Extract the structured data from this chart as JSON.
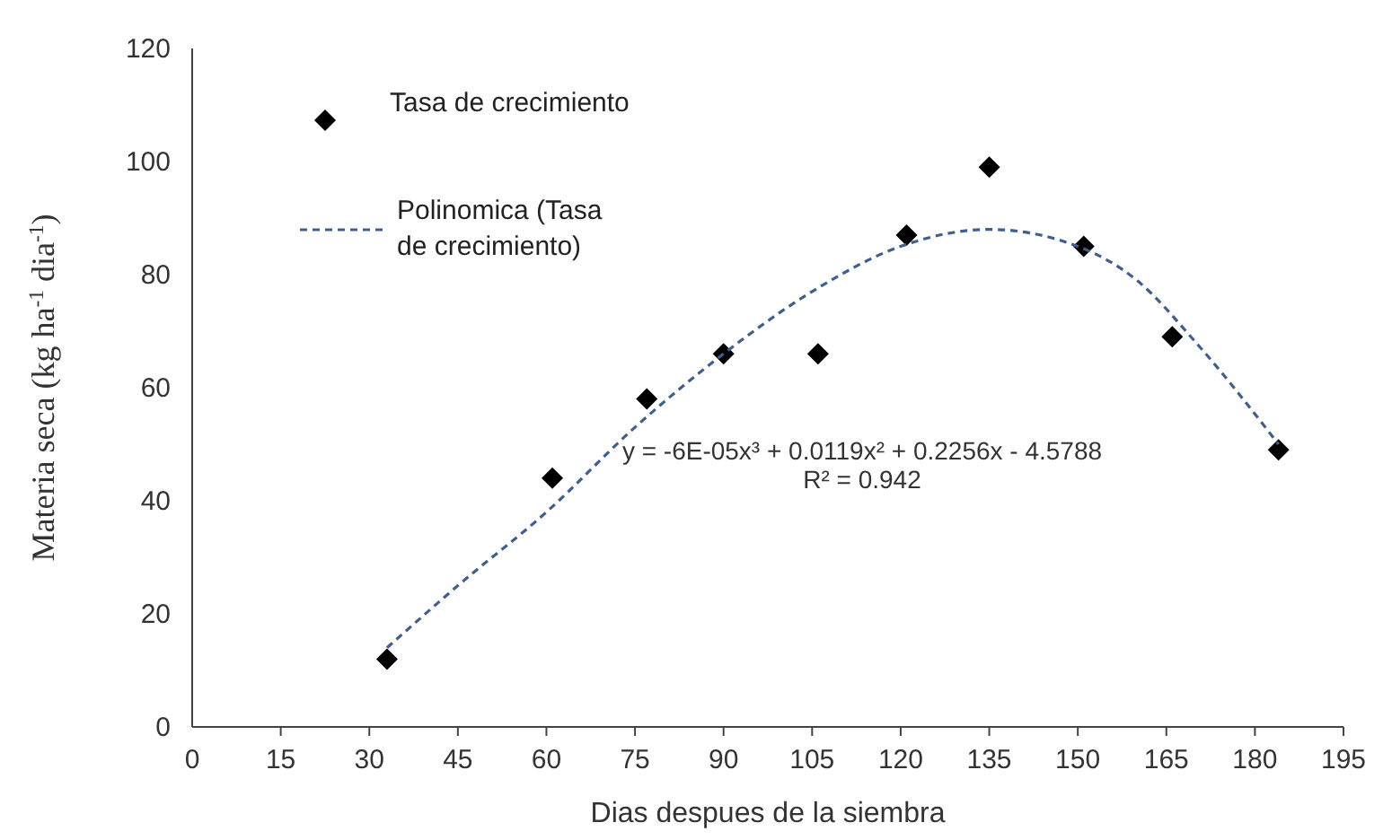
{
  "chart_data": {
    "type": "scatter",
    "xlabel": "Dias despues de la siembra",
    "ylabel": "Materia seca (kg ha$^{-1}$ dia$^{-1}$)",
    "x": [
      33,
      61,
      77,
      90,
      106,
      121,
      135,
      151,
      166,
      184
    ],
    "series": [
      {
        "name": "Tasa de crecimiento",
        "type": "scatter",
        "color": "#000000",
        "marker": "diamond",
        "values": [
          12,
          44,
          58,
          66,
          66,
          87,
          99,
          85,
          69,
          49
        ]
      },
      {
        "name": "Polinomica (Tasa de crecimiento)",
        "type": "line",
        "color": "#3f5f8f",
        "line_style": "dashed",
        "marker": "none",
        "x": [
          33,
          45,
          60,
          75,
          90,
          105,
          120,
          135,
          150,
          160,
          170,
          184
        ],
        "values": [
          14,
          25,
          38,
          53,
          66,
          77,
          85,
          88,
          85,
          79,
          68,
          50
        ]
      }
    ],
    "xlim": [
      0,
      195
    ],
    "xticks": [
      0,
      15,
      30,
      45,
      60,
      75,
      90,
      105,
      120,
      135,
      150,
      165,
      180,
      195
    ],
    "ylim": [
      0,
      120
    ],
    "yticks": [
      0,
      20,
      40,
      60,
      80,
      100,
      120
    ],
    "grid": false,
    "legend": "top left",
    "annotations": [
      "y = -6E-05x³ + 0.0119x² + 0.2256x - 4.5788",
      "R² = 0.942"
    ]
  }
}
